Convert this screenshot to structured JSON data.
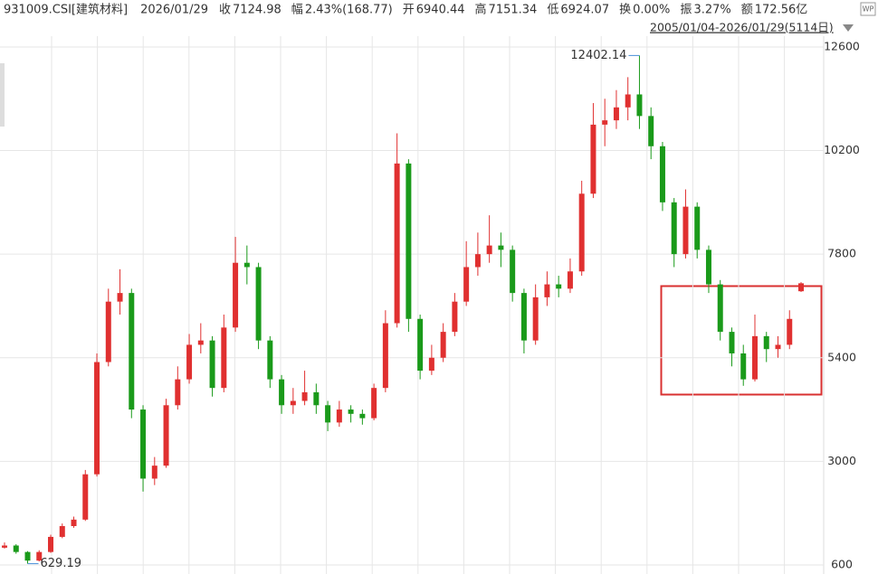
{
  "header": {
    "code": "931009.CSI[建筑材料]",
    "date": "2026/01/29",
    "items": [
      {
        "label": "收",
        "value": "7124.98",
        "color": "#e02020"
      },
      {
        "label": "幅",
        "value": "2.43%(168.77)",
        "color": "#e02020"
      },
      {
        "label": "开",
        "value": "6940.44",
        "color": "#1a9a1a"
      },
      {
        "label": "高",
        "value": "7151.34",
        "color": "#e02020"
      },
      {
        "label": "低",
        "value": "6924.07",
        "color": "#1a9a1a"
      },
      {
        "label": "换",
        "value": "0.00%",
        "color": "#333333"
      },
      {
        "label": "振",
        "value": "3.27%",
        "color": "#333333"
      },
      {
        "label": "额",
        "value": "172.56亿",
        "color": "#333333"
      }
    ],
    "range": "2005/01/04-2026/01/29(5114日)",
    "icon": "WP"
  },
  "chart_data": {
    "type": "candlestick",
    "ylim": [
      390,
      12850
    ],
    "yticks": [
      600,
      3000,
      5400,
      7800,
      10200,
      12600
    ],
    "grid": true,
    "up_color": "#e03030",
    "down_color": "#1a9a1a",
    "max_label": "12402.14",
    "min_label": "629.19",
    "open": [
      1000,
      1050,
      900,
      700,
      900,
      1250,
      1500,
      1650,
      2700,
      5300,
      6700,
      6900,
      4200,
      2600,
      2900,
      4300,
      4900,
      5700,
      5800,
      4700,
      6100,
      7600,
      7500,
      5800,
      4900,
      4300,
      4400,
      4600,
      4300,
      3900,
      4200,
      4100,
      4000,
      4700,
      6200,
      9900,
      6300,
      5100,
      5400,
      6000,
      6700,
      7500,
      7800,
      8000,
      7900,
      6900,
      5800,
      6800,
      7100,
      7000,
      7400,
      9200,
      10800,
      10900,
      11200,
      11500,
      11000,
      10300,
      9000,
      7800,
      8900,
      7900,
      7100,
      6000,
      5500,
      4900,
      5900,
      5600,
      5700,
      6940.44
    ],
    "high": [
      1120,
      1080,
      920,
      940,
      1300,
      1560,
      1720,
      2800,
      5500,
      7000,
      7450,
      7000,
      4300,
      3100,
      4450,
      5200,
      5950,
      6200,
      5900,
      6400,
      8200,
      8000,
      7600,
      5900,
      5000,
      4700,
      5100,
      4800,
      4400,
      4400,
      4300,
      4200,
      4800,
      6500,
      10600,
      10000,
      6400,
      5700,
      6200,
      6900,
      8100,
      8300,
      8700,
      8300,
      8000,
      7000,
      7100,
      7400,
      7300,
      7700,
      9500,
      11300,
      11400,
      11600,
      11900,
      12402.14,
      11200,
      10400,
      9100,
      9300,
      9000,
      8000,
      7200,
      6100,
      5700,
      6400,
      6000,
      5900,
      6500,
      7151.34
    ],
    "low": [
      980,
      860,
      629.19,
      680,
      880,
      1220,
      1460,
      1620,
      2650,
      5200,
      6400,
      4000,
      2300,
      2450,
      2850,
      4200,
      4800,
      5500,
      4500,
      4600,
      6000,
      7100,
      5600,
      4700,
      4100,
      4100,
      4300,
      4100,
      3700,
      3800,
      3900,
      3850,
      3950,
      4600,
      6100,
      6000,
      4900,
      5000,
      5300,
      5900,
      6600,
      7300,
      7600,
      7500,
      6700,
      5500,
      5700,
      6600,
      6800,
      6900,
      7300,
      9100,
      10300,
      10700,
      10900,
      10700,
      10000,
      8800,
      7500,
      7700,
      7700,
      6900,
      5800,
      5200,
      4750,
      4850,
      5300,
      5400,
      5600,
      6924.07
    ],
    "close": [
      1050,
      900,
      700,
      900,
      1250,
      1500,
      1650,
      2700,
      5300,
      6700,
      6900,
      4200,
      2600,
      2900,
      4300,
      4900,
      5700,
      5800,
      4700,
      6100,
      7600,
      7500,
      5800,
      4900,
      4300,
      4400,
      4600,
      4300,
      3900,
      4200,
      4100,
      4000,
      4700,
      6200,
      9900,
      6300,
      5100,
      5400,
      6000,
      6700,
      7500,
      7800,
      8000,
      7900,
      6900,
      5800,
      6800,
      7100,
      7000,
      7400,
      9200,
      10800,
      10900,
      11200,
      11500,
      11000,
      10300,
      9000,
      7800,
      8900,
      7900,
      7100,
      6000,
      5500,
      4900,
      5900,
      5600,
      5700,
      6300,
      7124.98
    ]
  }
}
